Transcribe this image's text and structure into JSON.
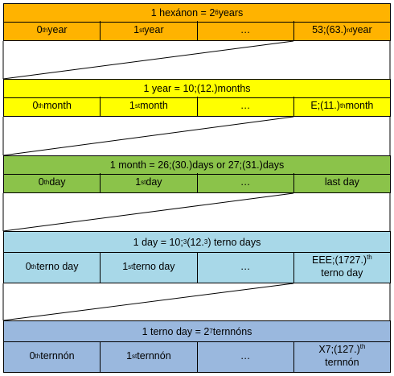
{
  "bands": [
    {
      "color": "#ffb300",
      "title": [
        "1 hexánon = 2",
        "6",
        " years"
      ],
      "cells": [
        [
          "0",
          "th",
          " year"
        ],
        [
          "1",
          "st",
          " year"
        ],
        [
          "…"
        ],
        [
          "53;(63.)",
          "rd",
          " year"
        ]
      ]
    },
    {
      "color": "#ffff00",
      "title": [
        "1 year = 10;(12.)months"
      ],
      "cells": [
        [
          "0",
          "th",
          " month"
        ],
        [
          "1",
          "st",
          " month"
        ],
        [
          "…"
        ],
        [
          "E;(11.)",
          "th",
          " month"
        ]
      ]
    },
    {
      "color": "#8bc34a",
      "title": [
        "1 month = 26;(30.)days or 27;(31.)days"
      ],
      "cells": [
        [
          "0",
          "th",
          " day"
        ],
        [
          "1",
          "st",
          " day"
        ],
        [
          "…"
        ],
        [
          "last day"
        ]
      ]
    },
    {
      "color": "#a8d8e8",
      "title": [
        "1 day = 10;",
        "3",
        "(12.",
        "3",
        ") terno days"
      ],
      "cells": [
        [
          "0",
          "th",
          " terno day"
        ],
        [
          "1",
          "st",
          " terno day"
        ],
        [
          "…"
        ],
        [
          "EEE;(1727.)",
          "th",
          " terno day"
        ]
      ]
    },
    {
      "color": "#9ab8de",
      "title": [
        "1 terno day = 2",
        "7",
        " ternnóns"
      ],
      "cells": [
        [
          "0",
          "th",
          " ternnón"
        ],
        [
          "1",
          "st",
          " ternnón"
        ],
        [
          "…"
        ],
        [
          "X7;(127.)",
          "th",
          " ternnón"
        ]
      ]
    }
  ]
}
